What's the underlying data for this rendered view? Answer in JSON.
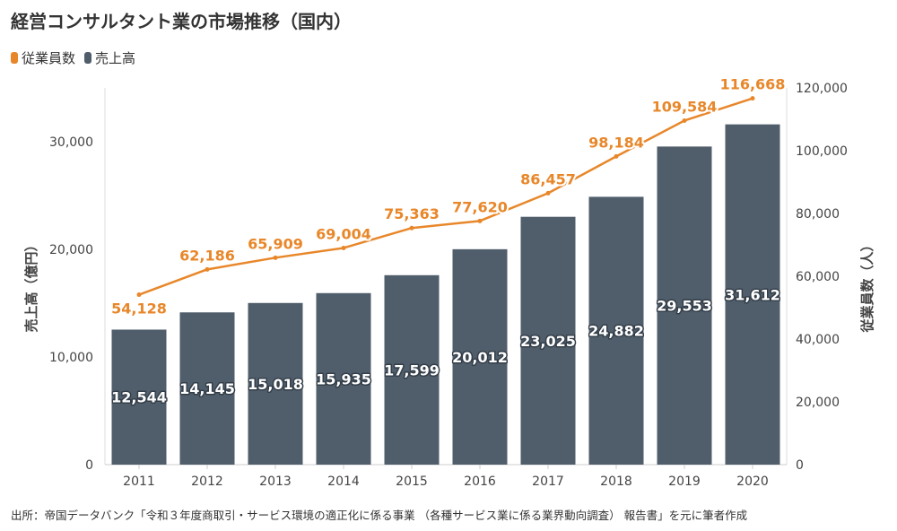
{
  "chart_data": {
    "type": "bar",
    "title": "経営コンサルタント業の市場推移（国内）",
    "categories": [
      "2011",
      "2012",
      "2013",
      "2014",
      "2015",
      "2016",
      "2017",
      "2018",
      "2019",
      "2020"
    ],
    "series": [
      {
        "name": "従業員数",
        "type": "line",
        "axis": "right",
        "color": "#E8872A",
        "values": [
          54128,
          62186,
          65909,
          69004,
          75363,
          77620,
          86457,
          98184,
          109584,
          116668
        ],
        "labels": [
          "54,128",
          "62,186",
          "65,909",
          "69,004",
          "75,363",
          "77,620",
          "86,457",
          "98,184",
          "109,584",
          "116,668"
        ]
      },
      {
        "name": "売上高",
        "type": "bar",
        "axis": "left",
        "color": "#505D6B",
        "values": [
          12544,
          14145,
          15018,
          15935,
          17599,
          20012,
          23025,
          24882,
          29553,
          31612
        ],
        "labels": [
          "12,544",
          "14,145",
          "15,018",
          "15,935",
          "17,599",
          "20,012",
          "23,025",
          "24,882",
          "29,553",
          "31,612"
        ]
      }
    ],
    "y_left": {
      "label": "売上高（億円）",
      "ylim": [
        0,
        35000
      ],
      "ticks": [
        0,
        10000,
        20000,
        30000
      ],
      "tick_labels": [
        "0",
        "10,000",
        "20,000",
        "30,000"
      ]
    },
    "y_right": {
      "label": "従業員数（人）",
      "ylim": [
        0,
        120000
      ],
      "ticks": [
        0,
        20000,
        40000,
        60000,
        80000,
        100000,
        120000
      ],
      "tick_labels": [
        "0",
        "20,000",
        "40,000",
        "60,000",
        "80,000",
        "100,000",
        "120,000"
      ]
    },
    "grid": false,
    "legend_position": "top-left"
  },
  "footer_note": "出所：帝国データバンク「令和３年度商取引・サービス環境の適正化に係る事業 （各種サービス業に係る業界動向調査） 報告書」を元に筆者作成"
}
